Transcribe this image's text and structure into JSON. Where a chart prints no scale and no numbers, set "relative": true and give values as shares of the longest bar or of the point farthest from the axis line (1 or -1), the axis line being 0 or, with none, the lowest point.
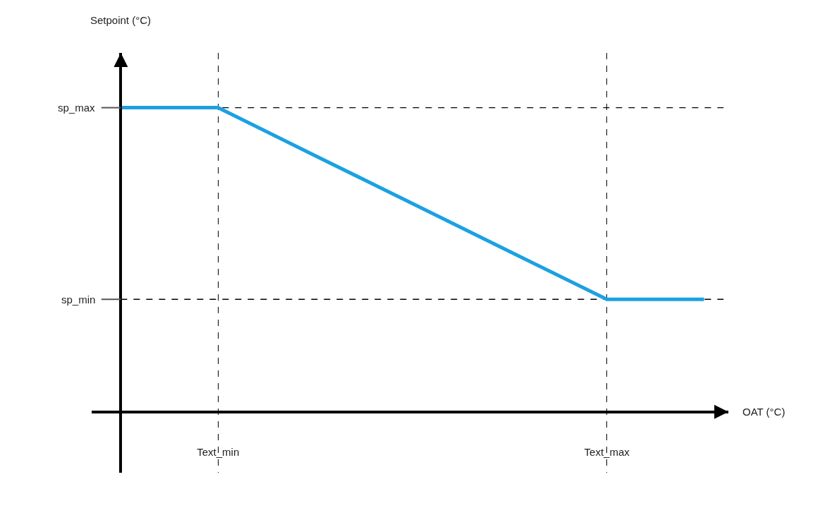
{
  "chart_data": {
    "type": "line",
    "relative": true,
    "xlabel": "OAT (°C)",
    "annotations": [
      "Setpoint (°C)"
    ],
    "categories": [
      null,
      "Text_min",
      null,
      null,
      null,
      "Text_max",
      null
    ],
    "series": [
      {
        "color": "#1ba1e2",
        "values": [
          1,
          1,
          0.842,
          0.685,
          0.527,
          0.37,
          0.37
        ]
      }
    ],
    "marker": "none",
    "line_style": "solid",
    "grid": "x",
    "ref_lines": [
      {
        "axis": "y",
        "value": 1,
        "label": "sp_max",
        "color": "#000000",
        "line_style": "dashed"
      },
      {
        "axis": "y",
        "value": 0.37,
        "label": "sp_min",
        "color": "#000000",
        "line_style": "dashed"
      }
    ]
  }
}
